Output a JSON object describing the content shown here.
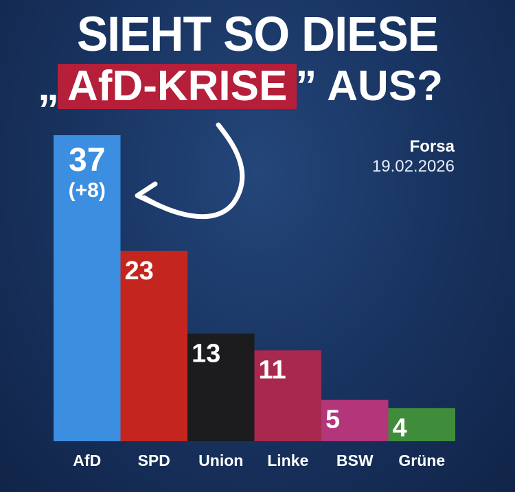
{
  "header": {
    "title_line1": "SIEHT SO DIESE",
    "quote_open": "„",
    "highlight": "AfD-KRISE",
    "quote_close": "”",
    "title_line2_rest": "AUS?"
  },
  "source": {
    "name": "Forsa",
    "date": "19.02.2026"
  },
  "colors": {
    "background": "#193563",
    "highlight": "#b51f3a"
  },
  "chart_data": {
    "type": "bar",
    "categories": [
      "AfD",
      "SPD",
      "Union",
      "Linke",
      "BSW",
      "Grüne"
    ],
    "values": [
      37,
      23,
      13,
      11,
      5,
      4
    ],
    "data_labels": [
      "37",
      "23",
      "13",
      "11",
      "5",
      "4"
    ],
    "annotations": [
      "(+8)"
    ],
    "colors": [
      "#3b8ee0",
      "#c4261f",
      "#1c1c1e",
      "#a8284e",
      "#b3357a",
      "#3f8d3b"
    ],
    "ylim": [
      0,
      37
    ],
    "grid": false,
    "legend": "none"
  }
}
